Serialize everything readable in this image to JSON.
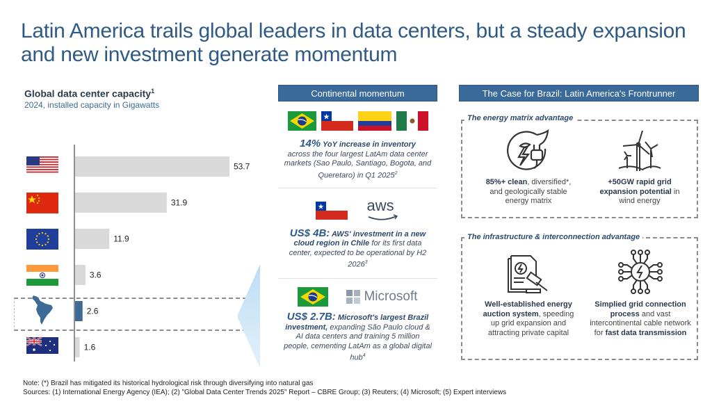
{
  "title": "Latin America trails global leaders in data centers, but a steady expansion and new investment generate momentum",
  "chart_data": {
    "type": "bar",
    "orientation": "horizontal",
    "title": "Global data center capacity",
    "title_superscript": "1",
    "subtitle": "2024, installed capacity in Gigawatts",
    "categories": [
      "United States",
      "China",
      "European Union",
      "India",
      "Latin America",
      "Australia"
    ],
    "category_icons": [
      "us-flag",
      "china-flag",
      "eu-flag",
      "india-flag",
      "latam-map",
      "australia-flag"
    ],
    "values": [
      53.7,
      31.9,
      11.9,
      3.6,
      2.6,
      1.6
    ],
    "value_labels": [
      "53.7",
      "31.9",
      "11.9",
      "3.6",
      "2.6",
      "1.6"
    ],
    "highlighted": "Latin America",
    "colors": {
      "default": "#d9d9d9",
      "highlight": "#3d6b96"
    },
    "xlim": [
      0,
      53.7
    ],
    "grid": false,
    "xlabel": "",
    "ylabel": ""
  },
  "continental": {
    "header": "Continental momentum",
    "flags": [
      "brazil-flag",
      "chile-flag",
      "colombia-flag",
      "mexico-flag"
    ],
    "item1": {
      "big": "14%",
      "bold": " YoY increase in inventory",
      "rest": "across the four largest LatAm data center markets (Sao Paulo, Santiago, Bogota, and Queretaro) in Q1 2025",
      "sup": "2"
    },
    "item2": {
      "logo": "aws",
      "big": "US$ 4B:",
      "bold": " AWS' investment in a new cloud region in Chile",
      "rest": " for its first data center, expected to be operational by H2 2026",
      "sup": "3"
    },
    "item3": {
      "logo": "Microsoft",
      "big": "US$ 2.7B:",
      "bold": " Microsoft's largest Brazil investment,",
      "rest": " expanding São Paulo cloud & AI data centers and training 5 million people, cementing LatAm as a global digital hub",
      "sup": "4"
    }
  },
  "brazil": {
    "header": "The Case for Brazil: Latin America's Frontrunner",
    "energy": {
      "label": "The energy matrix advantage",
      "left": {
        "bold": "85%+ clean",
        "rest": ", diversified*, and geologically stable energy matrix"
      },
      "right": {
        "bold": "+50GW rapid grid expansion potential",
        "rest": " in wind energy"
      }
    },
    "infra": {
      "label": "The infrastructure & interconnection advantage",
      "left": {
        "bold": "Well-established energy auction system",
        "rest": ", speeding up grid expansion and attracting private capital"
      },
      "right": {
        "bold1": "Simplied grid connection process",
        "mid": " and vast intercontinental cable network for ",
        "bold2": "fast data transmission"
      }
    }
  },
  "footer": {
    "note": "Note: (*) Brazil has mitigated its historical hydrological risk through diversifying into natural gas",
    "sources": "Sources: (1) International Energy Agency (IEA); (2) \"Global Data Center Trends 2025\" Report – CBRE Group; (3) Reuters; (4) Microsoft; (5) Expert interviews"
  }
}
